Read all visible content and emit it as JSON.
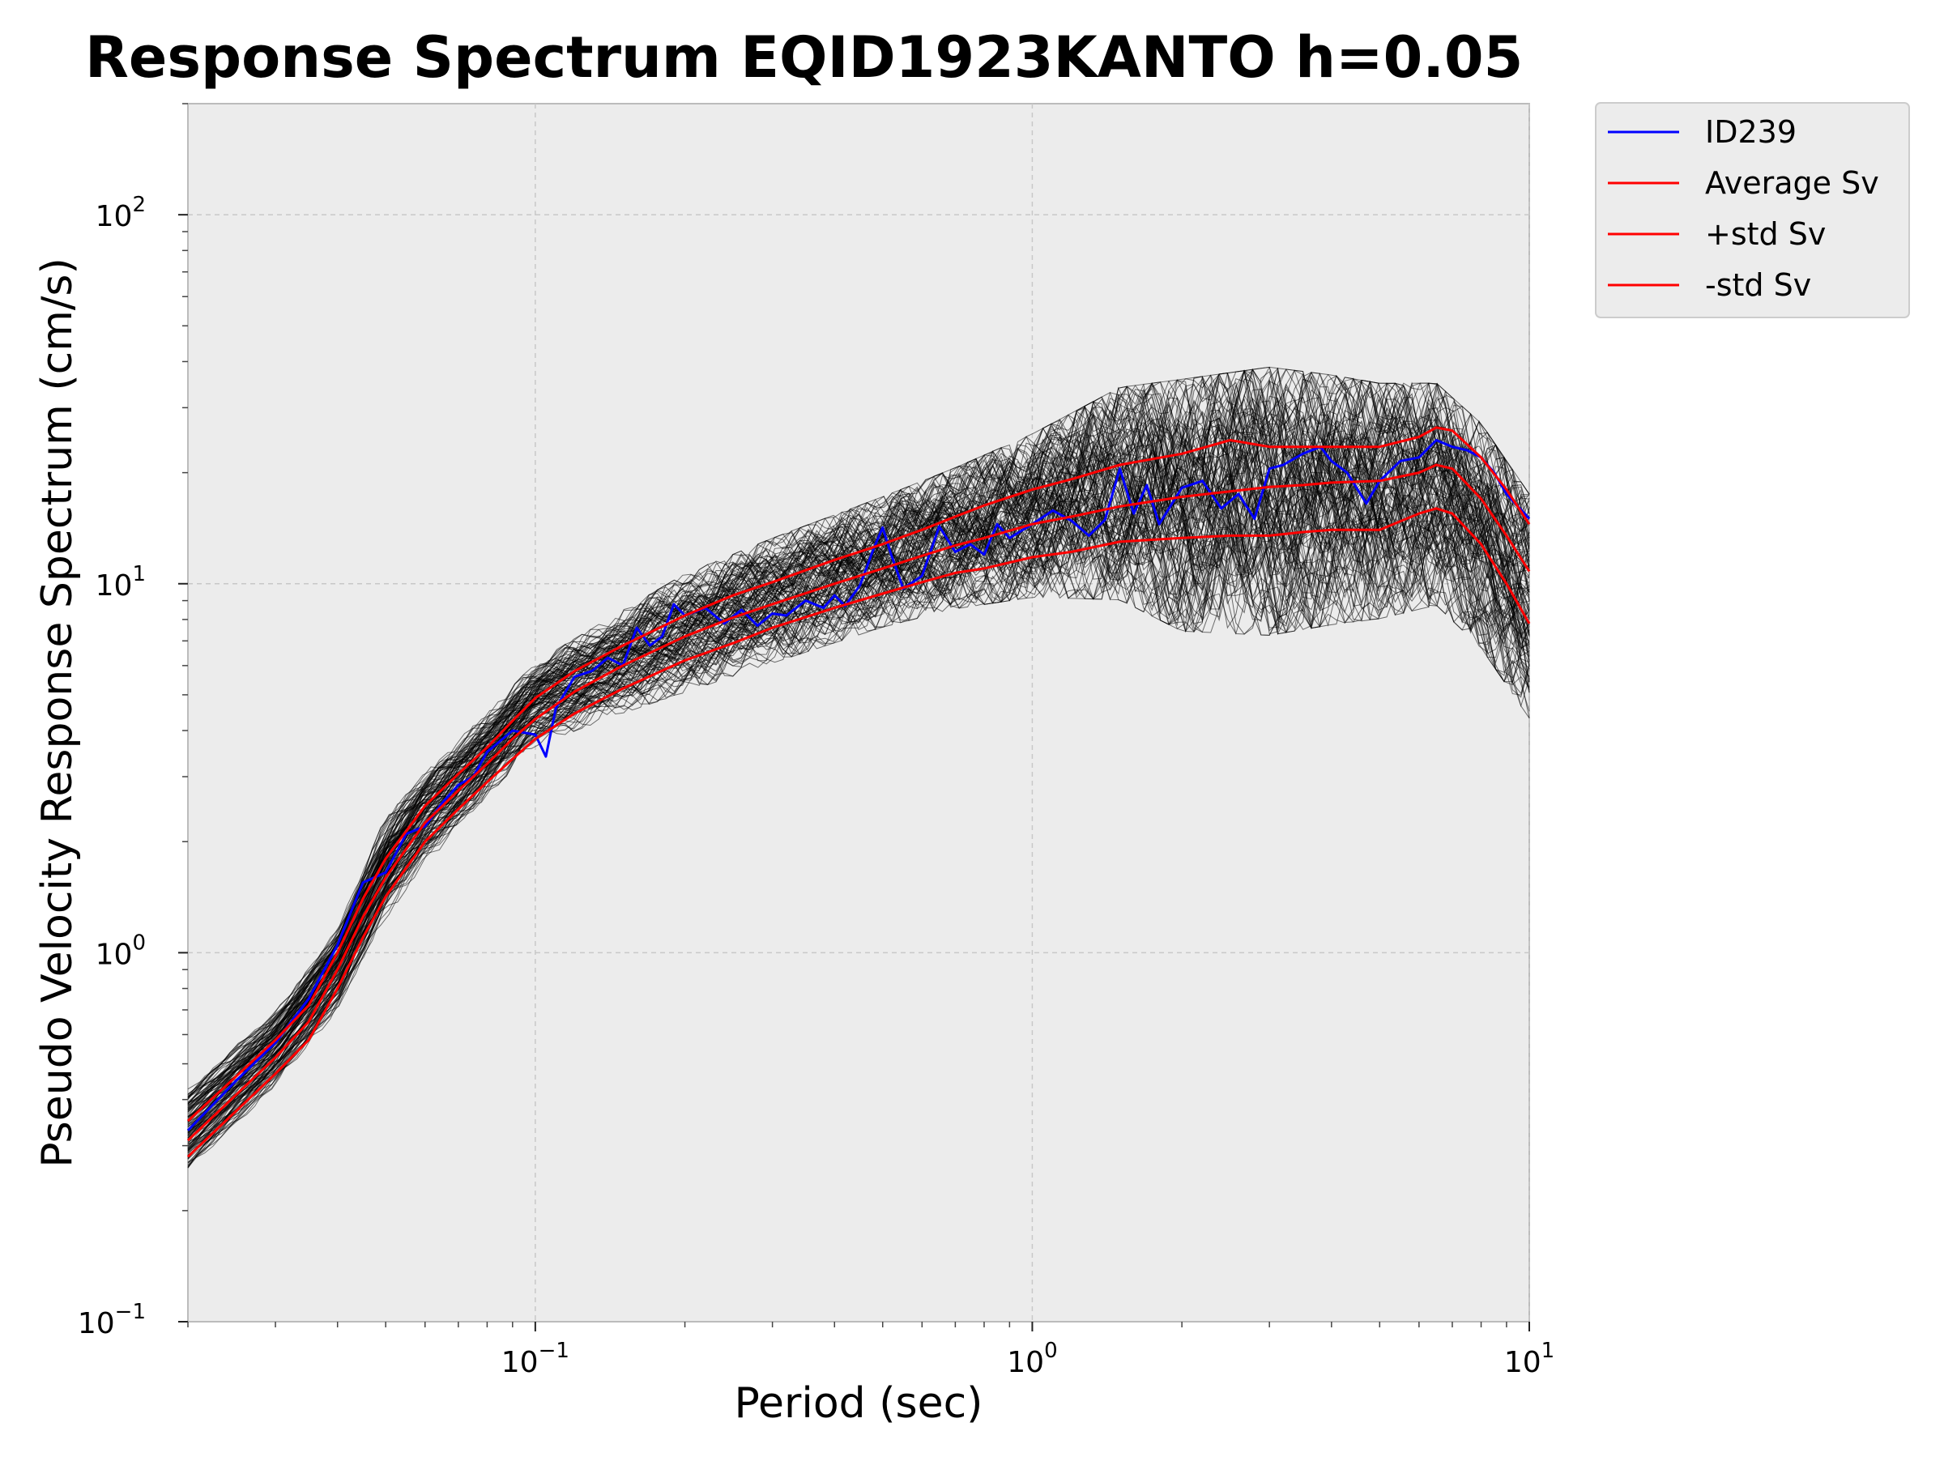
{
  "chart_data": {
    "type": "line",
    "title": "Response Spectrum EQID1923KANTO h=0.05",
    "xlabel": "Period (sec)",
    "ylabel": "Pseudo Velocity Response Spectrum (cm/s)",
    "xscale": "log",
    "yscale": "log",
    "xlim": [
      0.02,
      10
    ],
    "ylim": [
      0.1,
      200
    ],
    "x_ticks": [
      {
        "value": 0.1,
        "base": "10",
        "exp": "−1"
      },
      {
        "value": 1,
        "base": "10",
        "exp": "0"
      },
      {
        "value": 10,
        "base": "10",
        "exp": "1"
      }
    ],
    "y_ticks": [
      {
        "value": 0.1,
        "base": "10",
        "exp": "−1"
      },
      {
        "value": 1,
        "base": "10",
        "exp": "0"
      },
      {
        "value": 10,
        "base": "10",
        "exp": "1"
      },
      {
        "value": 100,
        "base": "10",
        "exp": "2"
      }
    ],
    "grid": true,
    "legend_position": "outside-top-right",
    "background_color": "#ececec",
    "ensemble": {
      "description_in_plot": "many thin black traces behind highlighted series",
      "color": "#000000",
      "bounds_upper": {
        "x": [
          0.02,
          0.03,
          0.04,
          0.05,
          0.06,
          0.08,
          0.1,
          0.15,
          0.2,
          0.3,
          0.5,
          0.7,
          1.0,
          1.5,
          2.0,
          3.0,
          4.0,
          5.0,
          6.5,
          8.0,
          10.0
        ],
        "y": [
          0.45,
          0.72,
          1.2,
          2.4,
          3.2,
          4.5,
          6.2,
          8.6,
          10.8,
          13.5,
          17.5,
          21.0,
          26.0,
          35.0,
          37.0,
          40.0,
          38.0,
          36.0,
          36.0,
          28.0,
          18.0
        ]
      },
      "bounds_lower": {
        "x": [
          0.02,
          0.03,
          0.04,
          0.05,
          0.06,
          0.08,
          0.1,
          0.15,
          0.2,
          0.3,
          0.5,
          0.7,
          1.0,
          1.5,
          2.0,
          3.0,
          4.0,
          5.0,
          6.5,
          8.0,
          10.0
        ],
        "y": [
          0.24,
          0.42,
          0.68,
          1.2,
          1.7,
          2.6,
          3.6,
          4.4,
          5.0,
          6.0,
          7.5,
          8.4,
          9.0,
          8.8,
          7.2,
          7.0,
          7.5,
          7.8,
          8.5,
          6.5,
          4.2
        ]
      }
    },
    "series": [
      {
        "name": "ID239",
        "color": "#0000ff",
        "x": [
          0.02,
          0.025,
          0.03,
          0.035,
          0.04,
          0.045,
          0.05,
          0.055,
          0.06,
          0.065,
          0.07,
          0.075,
          0.08,
          0.09,
          0.1,
          0.105,
          0.11,
          0.12,
          0.13,
          0.14,
          0.15,
          0.16,
          0.17,
          0.18,
          0.19,
          0.2,
          0.22,
          0.24,
          0.26,
          0.28,
          0.3,
          0.32,
          0.35,
          0.38,
          0.4,
          0.42,
          0.45,
          0.48,
          0.5,
          0.52,
          0.55,
          0.6,
          0.65,
          0.7,
          0.75,
          0.8,
          0.85,
          0.9,
          1.0,
          1.1,
          1.2,
          1.3,
          1.4,
          1.5,
          1.6,
          1.7,
          1.8,
          2.0,
          2.2,
          2.4,
          2.6,
          2.8,
          3.0,
          3.2,
          3.5,
          3.8,
          4.0,
          4.3,
          4.7,
          5.0,
          5.5,
          6.0,
          6.5,
          7.0,
          7.5,
          8.0,
          8.5,
          9.0,
          10.0
        ],
        "y": [
          0.33,
          0.45,
          0.57,
          0.75,
          1.05,
          1.55,
          1.65,
          2.1,
          2.2,
          2.55,
          2.85,
          3.0,
          3.5,
          4.0,
          3.9,
          3.4,
          4.6,
          5.6,
          5.8,
          6.3,
          6.0,
          7.6,
          6.8,
          7.2,
          8.8,
          8.2,
          8.6,
          7.8,
          8.5,
          7.7,
          8.3,
          8.2,
          9.0,
          8.6,
          9.3,
          8.7,
          9.9,
          12.5,
          14.2,
          12.0,
          9.7,
          10.5,
          14.3,
          12.2,
          12.8,
          12.0,
          14.5,
          13.3,
          14.5,
          15.8,
          14.8,
          13.5,
          14.9,
          20.5,
          15.5,
          18.5,
          14.5,
          18.2,
          19.0,
          16.0,
          17.5,
          15.0,
          20.5,
          21.0,
          22.5,
          23.5,
          21.5,
          20.0,
          16.5,
          19.0,
          21.5,
          22.0,
          24.5,
          23.5,
          23.0,
          22.0,
          20.0,
          17.5,
          15.0
        ]
      },
      {
        "name": "Average Sv",
        "color": "#ff0000",
        "x": [
          0.02,
          0.03,
          0.035,
          0.04,
          0.045,
          0.05,
          0.06,
          0.07,
          0.08,
          0.09,
          0.1,
          0.12,
          0.15,
          0.2,
          0.25,
          0.3,
          0.4,
          0.5,
          0.6,
          0.7,
          0.8,
          1.0,
          1.2,
          1.5,
          2.0,
          2.5,
          3.0,
          3.5,
          4.0,
          5.0,
          6.0,
          6.5,
          7.0,
          8.0,
          9.0,
          10.0
        ],
        "y": [
          0.31,
          0.52,
          0.65,
          0.9,
          1.25,
          1.6,
          2.25,
          2.75,
          3.25,
          3.8,
          4.3,
          5.1,
          6.0,
          7.2,
          8.1,
          8.8,
          10.0,
          11.0,
          11.9,
          12.7,
          13.3,
          14.5,
          15.2,
          16.2,
          17.2,
          17.8,
          18.3,
          18.5,
          18.8,
          19.0,
          20.0,
          21.0,
          20.5,
          17.0,
          13.5,
          10.8
        ]
      },
      {
        "name": "+std Sv",
        "color": "#ff0000",
        "x": [
          0.02,
          0.03,
          0.035,
          0.04,
          0.045,
          0.05,
          0.06,
          0.07,
          0.08,
          0.09,
          0.1,
          0.12,
          0.15,
          0.2,
          0.25,
          0.3,
          0.4,
          0.5,
          0.6,
          0.7,
          0.8,
          1.0,
          1.2,
          1.5,
          2.0,
          2.5,
          3.0,
          3.5,
          4.0,
          5.0,
          6.0,
          6.5,
          7.0,
          8.0,
          9.0,
          10.0
        ],
        "y": [
          0.35,
          0.58,
          0.72,
          1.0,
          1.4,
          1.8,
          2.5,
          3.05,
          3.6,
          4.25,
          4.9,
          5.8,
          6.8,
          8.2,
          9.3,
          10.1,
          11.6,
          12.8,
          14.0,
          15.2,
          16.3,
          18.0,
          19.2,
          21.0,
          22.5,
          24.5,
          23.5,
          23.5,
          23.5,
          23.5,
          25.0,
          26.5,
          26.0,
          22.0,
          18.0,
          14.5
        ]
      },
      {
        "name": "-std Sv",
        "color": "#ff0000",
        "x": [
          0.02,
          0.03,
          0.035,
          0.04,
          0.045,
          0.05,
          0.06,
          0.07,
          0.08,
          0.09,
          0.1,
          0.12,
          0.15,
          0.2,
          0.25,
          0.3,
          0.4,
          0.5,
          0.6,
          0.7,
          0.8,
          1.0,
          1.2,
          1.5,
          2.0,
          2.5,
          3.0,
          3.5,
          4.0,
          5.0,
          6.0,
          6.5,
          7.0,
          8.0,
          9.0,
          10.0
        ],
        "y": [
          0.28,
          0.47,
          0.58,
          0.8,
          1.1,
          1.42,
          2.0,
          2.45,
          2.9,
          3.35,
          3.8,
          4.45,
          5.2,
          6.2,
          6.9,
          7.6,
          8.6,
          9.4,
          10.1,
          10.7,
          11.0,
          11.8,
          12.2,
          13.0,
          13.3,
          13.5,
          13.5,
          13.8,
          14.0,
          14.0,
          15.5,
          16.0,
          15.5,
          12.8,
          10.0,
          7.8
        ]
      }
    ]
  }
}
